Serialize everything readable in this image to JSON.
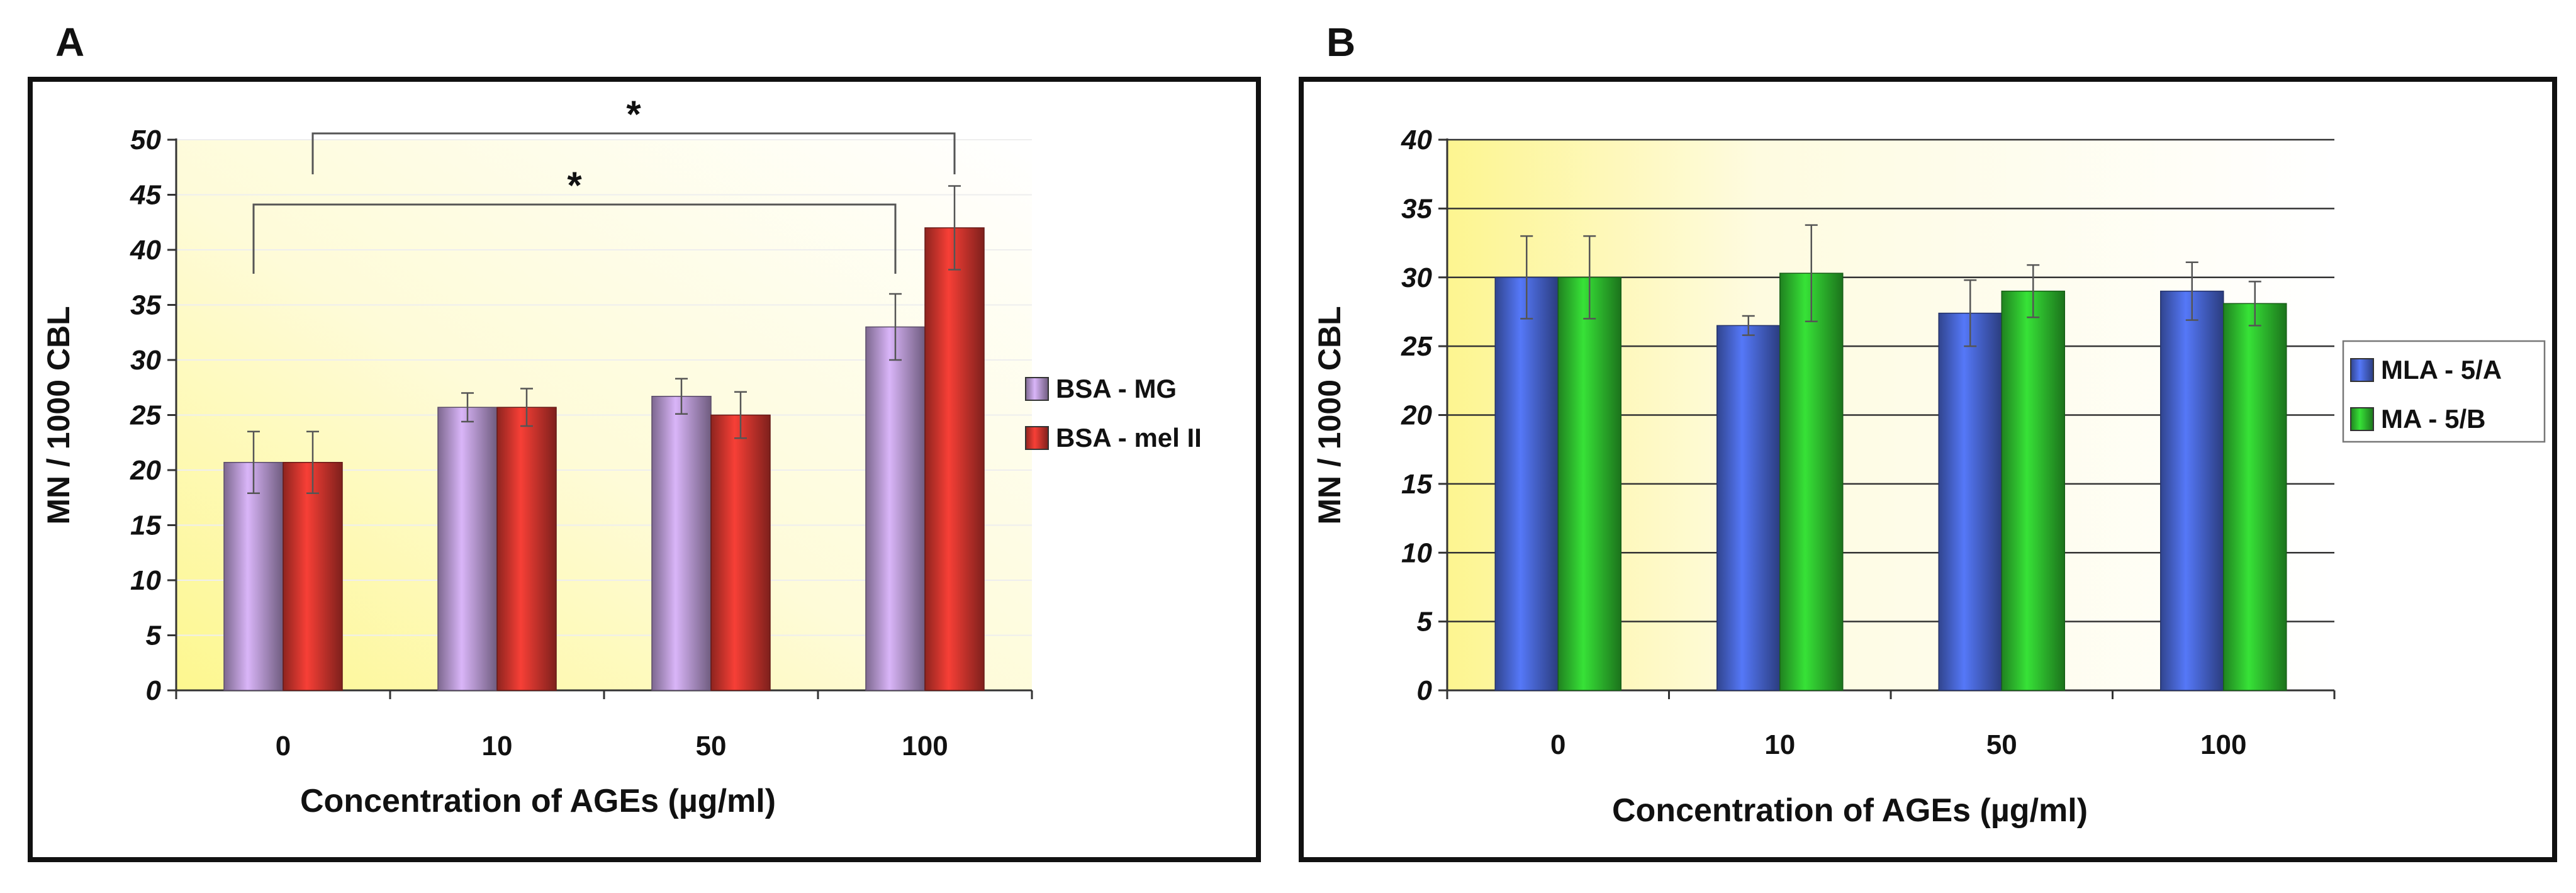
{
  "chart_data": [
    {
      "panel": "A",
      "type": "bar",
      "categories": [
        "0",
        "10",
        "50",
        "100"
      ],
      "series": [
        {
          "name": "BSA - MG",
          "color": "#c9a8e6",
          "values": [
            20.7,
            25.7,
            26.7,
            33.0
          ],
          "errors": [
            2.8,
            1.3,
            1.6,
            3.0
          ]
        },
        {
          "name": "BSA - mel II",
          "color": "#e53a32",
          "values": [
            20.7,
            25.7,
            25.0,
            42.0
          ],
          "errors": [
            2.8,
            1.7,
            2.1,
            3.8
          ]
        }
      ],
      "xlabel": "Concentration of AGEs (µg/ml)",
      "ylabel": "MN / 1000 CBL",
      "ylim": [
        0,
        50
      ],
      "yticks": [
        "0",
        "5",
        "10",
        "15",
        "20",
        "25",
        "30",
        "35",
        "40",
        "45",
        "50"
      ],
      "grid": false,
      "legend": "right",
      "significance": [
        {
          "label": "*",
          "from_category": "0",
          "to_category": "100",
          "series": "BSA - MG"
        },
        {
          "label": "*",
          "from_category": "0",
          "to_category": "100",
          "series": "BSA - mel II"
        }
      ]
    },
    {
      "panel": "B",
      "type": "bar",
      "categories": [
        "0",
        "10",
        "50",
        "100"
      ],
      "series": [
        {
          "name": "MLA - 5/A",
          "color": "#4f6fe6",
          "values": [
            30.0,
            26.5,
            27.4,
            29.0
          ],
          "errors": [
            3.0,
            0.7,
            2.4,
            2.1
          ]
        },
        {
          "name": "MA - 5/B",
          "color": "#33d133",
          "values": [
            30.0,
            30.3,
            29.0,
            28.1
          ],
          "errors": [
            3.0,
            3.5,
            1.9,
            1.6
          ]
        }
      ],
      "xlabel": "Concentration of AGEs (µg/ml)",
      "ylabel": "MN / 1000 CBL",
      "ylim": [
        0,
        40
      ],
      "yticks": [
        "0",
        "5",
        "10",
        "15",
        "20",
        "25",
        "30",
        "35",
        "40"
      ],
      "grid": true,
      "legend": "right"
    }
  ]
}
